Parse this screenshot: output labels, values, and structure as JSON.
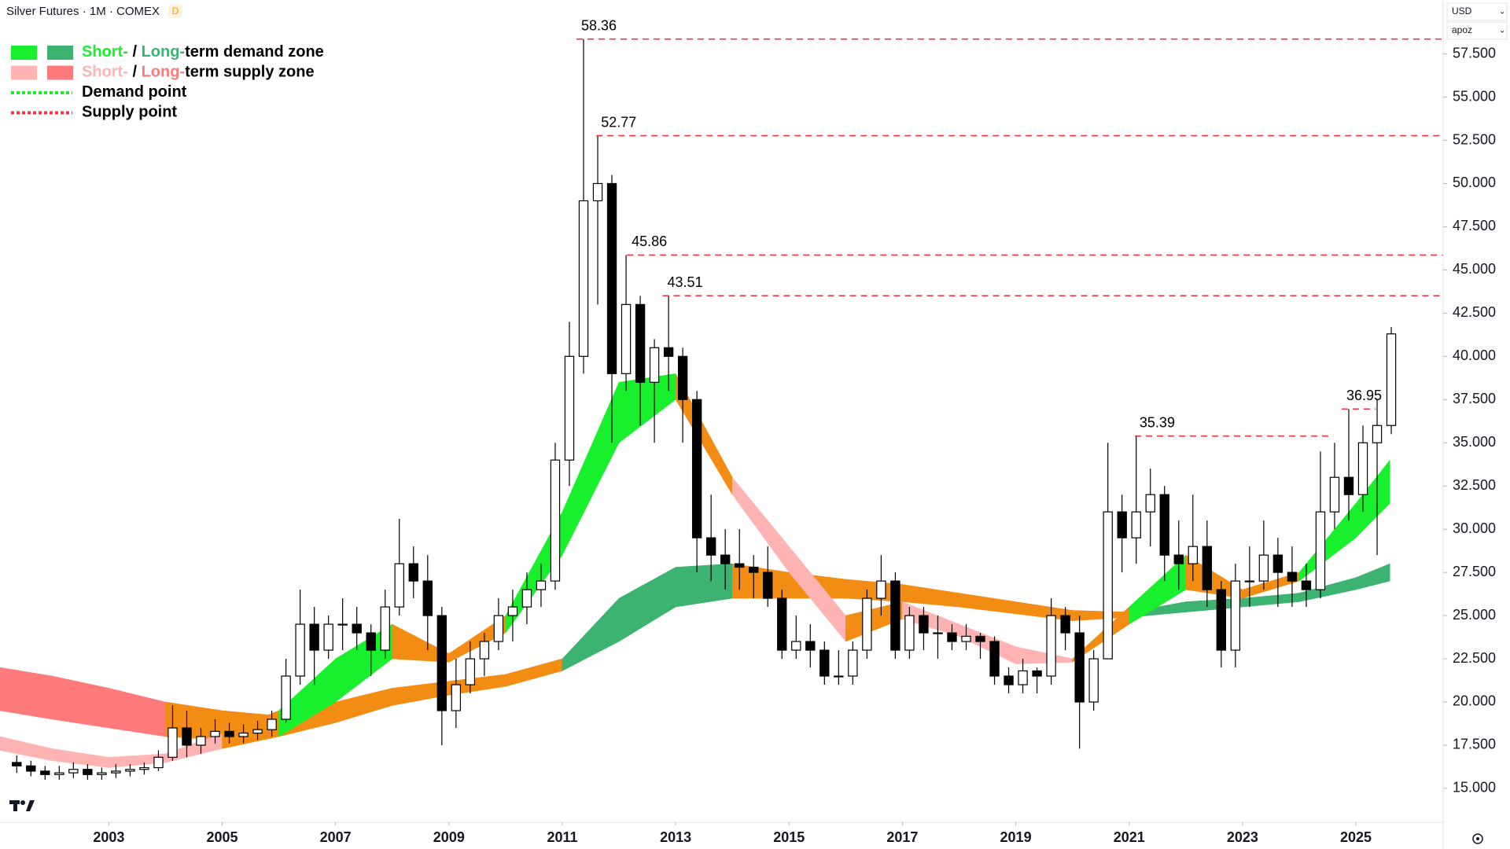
{
  "chart_data": {
    "type": "candlestick",
    "title": "Silver Futures · 1M · COMEX",
    "badge": "D",
    "currency": "USD",
    "scale_label": "apoz",
    "xlim": [
      2001.08,
      2026.54
    ],
    "ylim": [
      13.04,
      60.62
    ],
    "xticks": [
      2003,
      2005,
      2007,
      2009,
      2011,
      2013,
      2015,
      2017,
      2019,
      2021,
      2023,
      2025
    ],
    "yticks": [
      {
        "value": 15,
        "label": "15.000"
      },
      {
        "value": 17.5,
        "label": "17.500"
      },
      {
        "value": 20,
        "label": "20.000"
      },
      {
        "value": 22.5,
        "label": "22.500"
      },
      {
        "value": 25,
        "label": "25.000"
      },
      {
        "value": 27.5,
        "label": "27.500"
      },
      {
        "value": 30,
        "label": "30.000"
      },
      {
        "value": 32.5,
        "label": "32.500"
      },
      {
        "value": 35,
        "label": "35.000"
      },
      {
        "value": 37.5,
        "label": "37.500"
      },
      {
        "value": 40,
        "label": "40.000"
      },
      {
        "value": 42.5,
        "label": "42.500"
      },
      {
        "value": 45,
        "label": "45.000"
      },
      {
        "value": 47.5,
        "label": "47.500"
      },
      {
        "value": 50,
        "label": "50.000"
      },
      {
        "value": 52.5,
        "label": "52.500"
      },
      {
        "value": 55,
        "label": "55.000"
      },
      {
        "value": 57.5,
        "label": "57.500"
      }
    ],
    "up_color": "#ffffff",
    "down_color": "#000000",
    "x": [
      2001.25,
      2001.5,
      2001.75,
      2002.0,
      2002.25,
      2002.5,
      2002.75,
      2003.0,
      2003.25,
      2003.5,
      2003.75,
      2004.0,
      2004.25,
      2004.5,
      2004.75,
      2005.0,
      2005.25,
      2005.5,
      2005.75,
      2006.0,
      2006.25,
      2006.5,
      2006.75,
      2007.0,
      2007.25,
      2007.5,
      2007.75,
      2008.0,
      2008.25,
      2008.5,
      2008.75,
      2009.0,
      2009.25,
      2009.5,
      2009.75,
      2010.0,
      2010.25,
      2010.5,
      2010.75,
      2011.0,
      2011.25,
      2011.5,
      2011.75,
      2012.0,
      2012.25,
      2012.5,
      2012.75,
      2013.0,
      2013.25,
      2013.5,
      2013.75,
      2014.0,
      2014.25,
      2014.5,
      2014.75,
      2015.0,
      2015.25,
      2015.5,
      2015.75,
      2016.0,
      2016.25,
      2016.5,
      2016.75,
      2017.0,
      2017.25,
      2017.5,
      2017.75,
      2018.0,
      2018.25,
      2018.5,
      2018.75,
      2019.0,
      2019.25,
      2019.5,
      2019.75,
      2020.0,
      2020.25,
      2020.5,
      2020.75,
      2021.0,
      2021.25,
      2021.5,
      2021.75,
      2022.0,
      2022.25,
      2022.5,
      2022.75,
      2023.0,
      2023.25,
      2023.5,
      2023.75,
      2024.0,
      2024.25,
      2024.5,
      2024.75,
      2025.0,
      2025.25,
      2025.5
    ],
    "open": [
      16.5,
      16.3,
      16.0,
      15.8,
      15.9,
      16.1,
      15.8,
      15.9,
      16.0,
      16.1,
      16.2,
      16.8,
      18.5,
      17.5,
      18.0,
      18.3,
      18.0,
      18.2,
      18.4,
      19.0,
      21.5,
      24.5,
      23.0,
      24.5,
      24.5,
      24.0,
      23.0,
      25.5,
      28.0,
      27.0,
      25.0,
      19.5,
      21.0,
      22.5,
      23.5,
      25.0,
      25.5,
      26.5,
      27.0,
      34.0,
      40.0,
      49.0,
      50.0,
      39.0,
      43.0,
      38.5,
      40.5,
      40.0,
      37.5,
      29.5,
      28.5,
      28.0,
      27.8,
      27.5,
      26.0,
      23.0,
      23.5,
      23.0,
      21.5,
      21.5,
      23.0,
      26.0,
      27.0,
      23.0,
      25.0,
      24.0,
      24.0,
      23.5,
      23.8,
      23.5,
      21.5,
      21.0,
      21.8,
      21.5,
      25.0,
      24.0,
      20.0,
      22.5,
      31.0,
      29.5,
      31.0,
      32.0,
      28.5,
      28.0,
      29.0,
      26.5,
      23.0,
      27.0,
      27.0,
      28.5,
      27.5,
      27.0,
      26.5,
      31.0,
      33.0,
      32.0,
      35.0,
      36.0
    ],
    "high": [
      16.9,
      16.6,
      16.3,
      16.3,
      16.5,
      16.4,
      16.2,
      16.4,
      16.4,
      16.5,
      17.2,
      19.8,
      19.5,
      18.5,
      19.0,
      18.8,
      18.7,
      18.9,
      19.5,
      22.5,
      26.5,
      25.5,
      25.0,
      26.0,
      25.5,
      24.5,
      26.5,
      30.6,
      29.0,
      28.5,
      25.5,
      22.5,
      23.5,
      24.0,
      26.0,
      26.5,
      27.5,
      28.0,
      35.0,
      42.0,
      58.36,
      52.77,
      50.5,
      45.86,
      43.5,
      41.0,
      43.51,
      40.5,
      38.0,
      32.0,
      30.0,
      30.0,
      28.5,
      29.0,
      26.5,
      25.0,
      24.5,
      23.5,
      23.0,
      23.5,
      26.5,
      28.5,
      27.5,
      25.5,
      25.5,
      25.0,
      24.5,
      24.5,
      24.0,
      23.8,
      22.0,
      22.5,
      22.0,
      26.0,
      25.5,
      25.0,
      23.0,
      35.0,
      32.0,
      35.39,
      33.5,
      32.5,
      30.5,
      32.0,
      30.5,
      27.0,
      28.0,
      29.0,
      30.5,
      29.5,
      29.0,
      28.0,
      34.5,
      35.0,
      36.95,
      36.0,
      37.5,
      41.7
    ],
    "low": [
      15.9,
      15.7,
      15.5,
      15.5,
      15.6,
      15.5,
      15.5,
      15.6,
      15.7,
      15.8,
      16.0,
      16.6,
      16.8,
      17.0,
      17.6,
      17.6,
      17.6,
      17.8,
      18.0,
      18.8,
      21.0,
      21.0,
      22.5,
      23.0,
      23.0,
      21.5,
      22.5,
      25.0,
      26.0,
      23.0,
      17.5,
      18.5,
      20.5,
      21.5,
      23.0,
      23.5,
      24.5,
      25.5,
      26.5,
      32.5,
      39.0,
      43.0,
      35.0,
      38.0,
      36.0,
      35.0,
      38.0,
      35.0,
      27.5,
      27.0,
      26.5,
      26.5,
      26.0,
      25.5,
      22.5,
      22.5,
      22.0,
      21.0,
      21.0,
      21.0,
      22.5,
      25.0,
      22.5,
      22.5,
      23.0,
      22.5,
      23.0,
      23.0,
      22.5,
      21.0,
      20.5,
      20.5,
      20.5,
      21.0,
      23.0,
      17.3,
      19.5,
      22.5,
      27.5,
      28.0,
      29.0,
      27.0,
      26.5,
      27.0,
      25.5,
      22.0,
      22.0,
      25.5,
      26.5,
      25.5,
      25.5,
      25.5,
      26.0,
      30.0,
      30.5,
      31.0,
      28.5,
      35.5
    ],
    "close": [
      16.3,
      16.0,
      15.8,
      15.9,
      16.1,
      15.8,
      15.9,
      16.0,
      16.1,
      16.2,
      16.8,
      18.5,
      17.5,
      18.0,
      18.3,
      18.0,
      18.2,
      18.4,
      19.0,
      21.5,
      24.5,
      23.0,
      24.5,
      24.5,
      24.0,
      23.0,
      25.5,
      28.0,
      27.0,
      25.0,
      19.5,
      21.0,
      22.5,
      23.5,
      25.0,
      25.5,
      26.5,
      27.0,
      34.0,
      40.0,
      49.0,
      50.0,
      39.0,
      43.0,
      38.5,
      40.5,
      40.0,
      37.5,
      29.5,
      28.5,
      28.0,
      27.8,
      27.5,
      26.0,
      23.0,
      23.5,
      23.0,
      21.5,
      21.5,
      23.0,
      26.0,
      27.0,
      23.0,
      25.0,
      24.0,
      24.0,
      23.5,
      23.8,
      23.5,
      21.5,
      21.0,
      21.8,
      21.5,
      25.0,
      24.0,
      20.0,
      22.5,
      31.0,
      29.5,
      31.0,
      32.0,
      28.5,
      28.0,
      29.0,
      26.5,
      23.0,
      27.0,
      27.0,
      28.5,
      27.5,
      27.0,
      26.5,
      31.0,
      33.0,
      32.0,
      35.0,
      36.0,
      41.3
    ],
    "zones": [
      {
        "x": [
          2001.08,
          2002,
          2003,
          2004,
          2005,
          2006,
          2007,
          2008,
          2009,
          2010,
          2011,
          2012,
          2013,
          2014,
          2015,
          2016,
          2017,
          2018,
          2019,
          2020,
          2021,
          2022,
          2023,
          2024,
          2025,
          2025.6
        ],
        "upper": [
          22.0,
          21.5,
          20.8,
          20.0,
          19.5,
          19.2,
          20.0,
          20.8,
          21.2,
          21.6,
          22.5,
          26.0,
          27.8,
          28.0,
          27.5,
          27.1,
          26.8,
          26.3,
          25.8,
          25.3,
          25.2,
          25.8,
          26.0,
          26.3,
          27.2,
          28.0
        ],
        "lower": [
          19.5,
          19.0,
          18.5,
          18.0,
          17.8,
          18.0,
          18.8,
          19.8,
          20.4,
          20.9,
          21.8,
          23.5,
          25.5,
          26.0,
          26.0,
          26.0,
          25.8,
          25.5,
          25.1,
          24.7,
          24.9,
          25.2,
          25.5,
          25.8,
          26.5,
          27.0
        ],
        "colors": [
          "#ff7b7b",
          "#ff7b7b",
          "#ff7b7b",
          "#f28c12",
          "#f28c12",
          "#f28c12",
          "#f28c12",
          "#f28c12",
          "#f28c12",
          "#f28c12",
          "#3cb371",
          "#3cb371",
          "#3cb371",
          "#f28c12",
          "#f28c12",
          "#f28c12",
          "#f28c12",
          "#f28c12",
          "#f28c12",
          "#f28c12",
          "#3cb371",
          "#3cb371",
          "#3cb371",
          "#3cb371",
          "#3cb371"
        ]
      },
      {
        "x": [
          2001.08,
          2002,
          2003,
          2004,
          2005,
          2006,
          2007,
          2008,
          2009,
          2010,
          2011,
          2012,
          2013,
          2014,
          2015,
          2016,
          2017,
          2018,
          2019,
          2020,
          2021,
          2022,
          2023,
          2024,
          2025,
          2025.6
        ],
        "upper": [
          18.0,
          17.3,
          16.8,
          17.0,
          18.2,
          19.5,
          22.5,
          24.5,
          22.8,
          25.0,
          31.0,
          38.5,
          39.0,
          33.0,
          29.0,
          25.0,
          25.8,
          24.5,
          23.2,
          22.5,
          25.5,
          28.5,
          26.5,
          27.5,
          31.5,
          34.0
        ],
        "lower": [
          17.2,
          16.6,
          16.2,
          16.5,
          17.3,
          18.0,
          20.0,
          22.5,
          22.3,
          24.0,
          28.5,
          35.0,
          37.5,
          32.0,
          27.5,
          23.5,
          24.8,
          23.8,
          22.2,
          22.3,
          24.5,
          26.5,
          26.0,
          27.0,
          29.5,
          31.5
        ],
        "colors": [
          "#ffb3b3",
          "#ffb3b3",
          "#ffb3b3",
          "#ffb3b3",
          "#f28c12",
          "#19f02d",
          "#19f02d",
          "#f28c12",
          "#f28c12",
          "#19f02d",
          "#19f02d",
          "#19f02d",
          "#f28c12",
          "#ffb3b3",
          "#ffb3b3",
          "#f28c12",
          "#ffb3b3",
          "#ffb3b3",
          "#ffb3b3",
          "#f28c12",
          "#19f02d",
          "#f28c12",
          "#f28c12",
          "#19f02d",
          "#19f02d"
        ]
      }
    ],
    "supply_points": [
      {
        "value": 58.36,
        "x": 2011.25
      },
      {
        "value": 52.77,
        "x": 2011.6
      },
      {
        "value": 45.86,
        "x": 2012.14
      },
      {
        "value": 43.51,
        "x": 2012.77
      },
      {
        "value": 35.39,
        "x": 2021.1,
        "x_end": 2024.6
      },
      {
        "value": 36.95,
        "x": 2024.75,
        "x_end": 2025.35
      }
    ],
    "supply_color": "#f23645",
    "legend": [
      {
        "swatches": [
          "#19f02d",
          "#3cb371"
        ],
        "parts": [
          {
            "text": "Short-",
            "color": "#19f02d"
          },
          {
            "text": " / ",
            "color": "#000000"
          },
          {
            "text": "Long-",
            "color": "#3cb371"
          },
          {
            "text": "term demand zone",
            "color": "#000000"
          }
        ]
      },
      {
        "swatches": [
          "#ffb3b3",
          "#ff7b7b"
        ],
        "parts": [
          {
            "text": "Short-",
            "color": "#ffb3b3"
          },
          {
            "text": " / ",
            "color": "#000000"
          },
          {
            "text": "Long-",
            "color": "#ff7b7b"
          },
          {
            "text": "term supply zone",
            "color": "#000000"
          }
        ]
      },
      {
        "line": "#19f02d",
        "parts": [
          {
            "text": "Demand point",
            "color": "#000000"
          }
        ]
      },
      {
        "line": "#f23645",
        "parts": [
          {
            "text": "Supply point",
            "color": "#000000"
          }
        ]
      }
    ]
  }
}
